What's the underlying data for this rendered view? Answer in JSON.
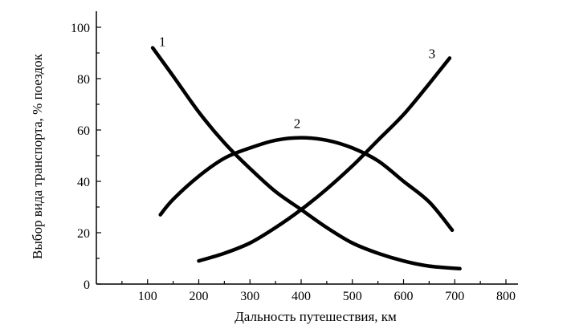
{
  "chart_data": {
    "type": "line",
    "title": "",
    "xlabel": "Дальность путешествия, км",
    "ylabel": "Выбор вида транспорта, % поездок",
    "xlim": [
      0,
      800
    ],
    "ylim": [
      0,
      100
    ],
    "xticks": [
      "100",
      "200",
      "300",
      "400",
      "500",
      "600",
      "700",
      "800"
    ],
    "yticks": [
      "0",
      "20",
      "40",
      "60",
      "80",
      "100"
    ],
    "grid": false,
    "legend": "none",
    "series": [
      {
        "name": "1",
        "x": [
          110,
          150,
          200,
          250,
          300,
          350,
          400,
          450,
          500,
          550,
          600,
          650,
          710
        ],
        "y": [
          92,
          81,
          67,
          55,
          45,
          36,
          29,
          22,
          16,
          12,
          9,
          7,
          6
        ]
      },
      {
        "name": "2",
        "x": [
          125,
          150,
          200,
          250,
          300,
          350,
          400,
          450,
          500,
          550,
          600,
          650,
          695
        ],
        "y": [
          27,
          33,
          42,
          49,
          53,
          56,
          57,
          56,
          53,
          48,
          40,
          32,
          21
        ]
      },
      {
        "name": "3",
        "x": [
          200,
          250,
          300,
          350,
          400,
          450,
          500,
          550,
          600,
          650,
          690
        ],
        "y": [
          9,
          12,
          16,
          22,
          29,
          37,
          46,
          56,
          66,
          78,
          88
        ]
      }
    ],
    "colors": {
      "line": "#000000",
      "axis": "#000000"
    }
  }
}
